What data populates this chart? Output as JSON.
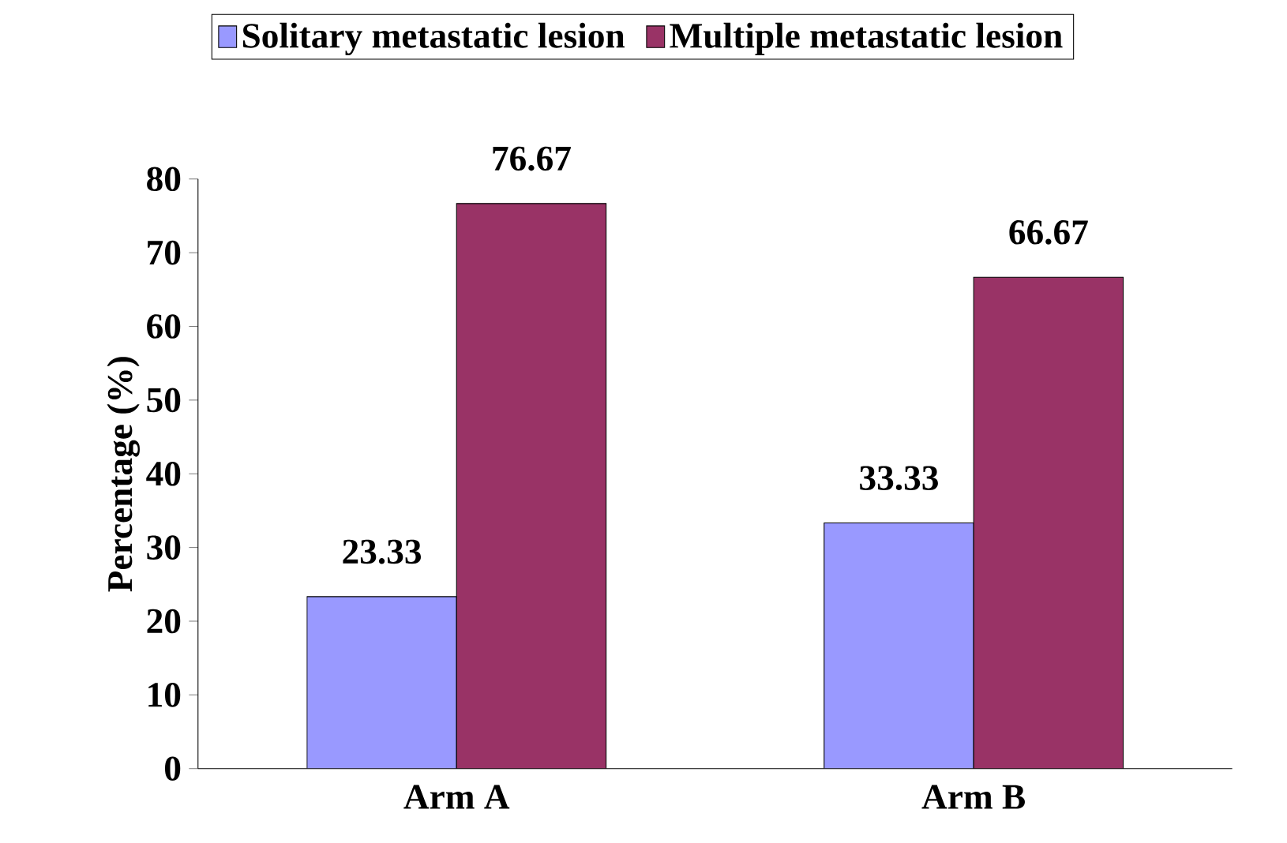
{
  "chart_data": {
    "type": "bar",
    "ylabel": "Percentage (%)",
    "categories": [
      "Arm A",
      "Arm B"
    ],
    "series": [
      {
        "name": "Solitary metastatic lesion",
        "color": "#9999ff",
        "values": [
          23.33,
          33.33
        ]
      },
      {
        "name": "Multiple metastatic lesion",
        "color": "#993366",
        "values": [
          76.67,
          66.67
        ]
      }
    ],
    "ylim": [
      0,
      80
    ],
    "yticks": [
      0,
      10,
      20,
      30,
      40,
      50,
      60,
      70,
      80
    ],
    "data_labels": true,
    "legend": "top",
    "grid": false
  }
}
